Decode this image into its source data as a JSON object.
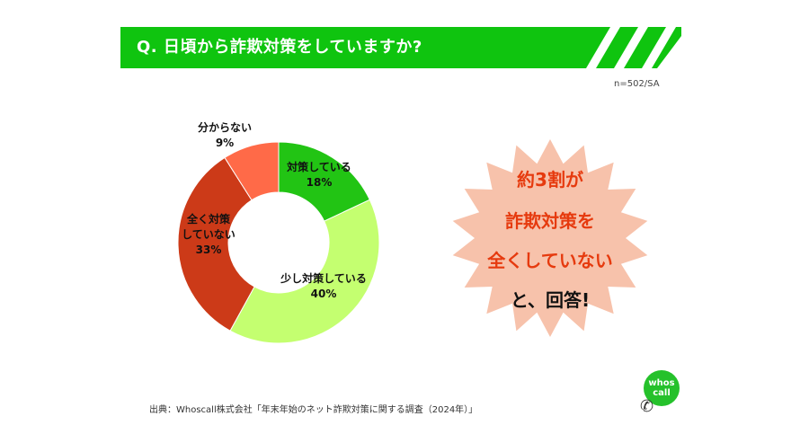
{
  "header": {
    "question": "Q. 日頃から詐欺対策をしていますか?",
    "sample_note": "n=502/SA"
  },
  "chart_data": {
    "type": "pie",
    "subtype": "donut",
    "slices": [
      {
        "label_lines": [
          "対策している"
        ],
        "value": 18,
        "value_label": "18%",
        "color": "#22c414"
      },
      {
        "label_lines": [
          "少し対策している"
        ],
        "value": 40,
        "value_label": "40%",
        "color": "#c4ff70"
      },
      {
        "label_lines": [
          "全く対策",
          "していない"
        ],
        "value": 33,
        "value_label": "33%",
        "color": "#cc3a18"
      },
      {
        "label_lines": [
          "分からない"
        ],
        "value": 9,
        "value_label": "9%",
        "color": "#ff6a48"
      }
    ]
  },
  "callout": {
    "lines": [
      {
        "text": "約3割が",
        "color": "#e63a0e"
      },
      {
        "text": "詐欺対策を",
        "color": "#e63a0e"
      },
      {
        "text": "全くしていない",
        "color": "#e63a0e"
      },
      {
        "text": "と、回答!",
        "color": "#111111"
      }
    ],
    "burst_color": "#f7c2ab"
  },
  "footer": {
    "source": "出典：Whoscall株式会社「年末年始のネット詐欺対策に関する調査（2024年）」"
  },
  "logo": {
    "line1": "whos",
    "line2": "call",
    "icon": "phone-icon"
  },
  "colors": {
    "banner": "#0fc40f",
    "logo": "#25c12b"
  }
}
